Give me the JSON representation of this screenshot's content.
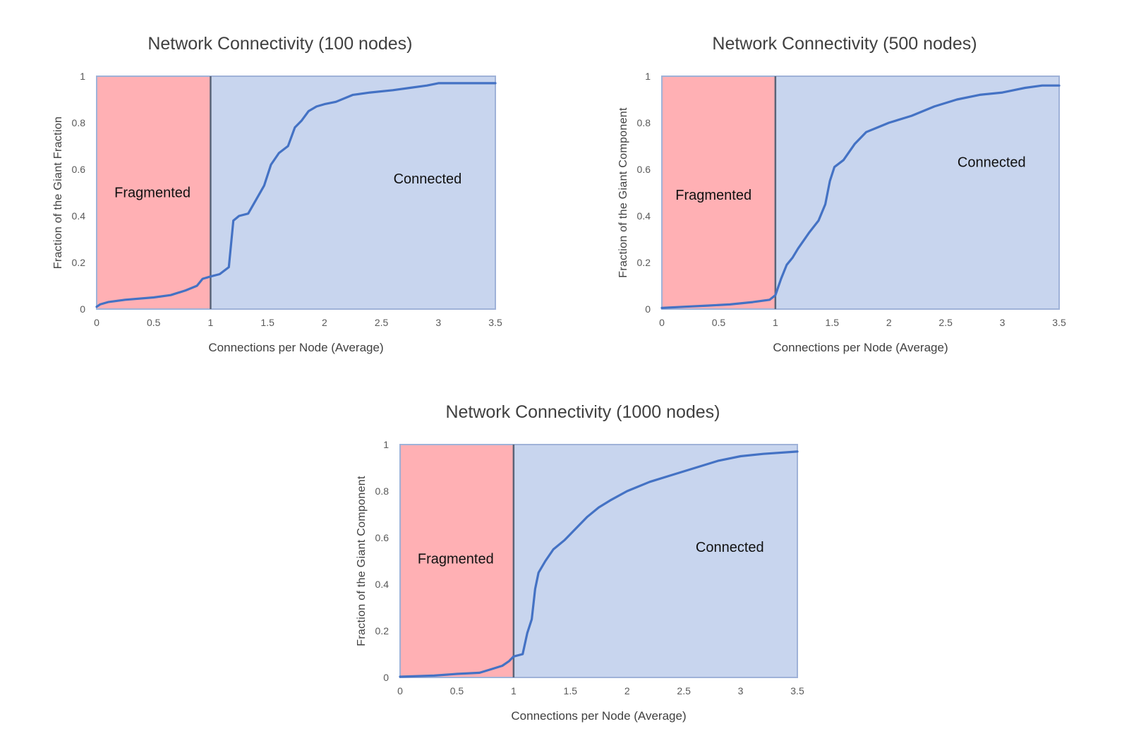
{
  "chart_data": [
    {
      "type": "line",
      "title": "Network Connectivity (100 nodes)",
      "xlabel": "Connections per Node (Average)",
      "ylabel": "Fraction of the Giant Fraction",
      "xlim": [
        0,
        3.5
      ],
      "ylim": [
        0,
        1
      ],
      "xticks": [
        "0",
        "0.5",
        "1",
        "1.5",
        "2",
        "2.5",
        "3",
        "3.5"
      ],
      "yticks": [
        "0",
        "0.2",
        "0.4",
        "0.6",
        "0.8",
        "1"
      ],
      "regions": [
        {
          "label": "Fragmented",
          "x": [
            0,
            1
          ],
          "color": "#ffb0b4"
        },
        {
          "label": "Connected",
          "x": [
            1,
            3.5
          ],
          "color": "#c8d5ee"
        }
      ],
      "series": [
        {
          "color": "#4472c4",
          "x": [
            0,
            0.03,
            0.1,
            0.25,
            0.5,
            0.65,
            0.78,
            0.88,
            0.93,
            1.0,
            1.08,
            1.16,
            1.2,
            1.25,
            1.33,
            1.4,
            1.47,
            1.53,
            1.6,
            1.68,
            1.74,
            1.8,
            1.86,
            1.93,
            2.0,
            2.1,
            2.25,
            2.4,
            2.6,
            2.75,
            2.9,
            3.0,
            3.2,
            3.5
          ],
          "y": [
            0.01,
            0.02,
            0.03,
            0.04,
            0.05,
            0.06,
            0.08,
            0.1,
            0.13,
            0.14,
            0.15,
            0.18,
            0.38,
            0.4,
            0.41,
            0.47,
            0.53,
            0.62,
            0.67,
            0.7,
            0.78,
            0.81,
            0.85,
            0.87,
            0.88,
            0.89,
            0.92,
            0.93,
            0.94,
            0.95,
            0.96,
            0.97,
            0.97,
            0.97
          ]
        }
      ]
    },
    {
      "type": "line",
      "title": "Network Connectivity (500 nodes)",
      "xlabel": "Connections per Node (Average)",
      "ylabel": "Fraction of the Giant Component",
      "xlim": [
        0,
        3.5
      ],
      "ylim": [
        0,
        1
      ],
      "xticks": [
        "0",
        "0.5",
        "1",
        "1.5",
        "2",
        "2.5",
        "3",
        "3.5"
      ],
      "yticks": [
        "0",
        "0.2",
        "0.4",
        "0.6",
        "0.8",
        "1"
      ],
      "regions": [
        {
          "label": "Fragmented",
          "x": [
            0,
            1
          ],
          "color": "#ffb0b4"
        },
        {
          "label": "Connected",
          "x": [
            1,
            3.5
          ],
          "color": "#c8d5ee"
        }
      ],
      "series": [
        {
          "color": "#4472c4",
          "x": [
            0,
            0.2,
            0.4,
            0.6,
            0.8,
            0.95,
            1.0,
            1.05,
            1.1,
            1.15,
            1.2,
            1.3,
            1.38,
            1.44,
            1.48,
            1.52,
            1.6,
            1.7,
            1.8,
            1.9,
            2.0,
            2.2,
            2.4,
            2.6,
            2.8,
            3.0,
            3.2,
            3.35,
            3.5
          ],
          "y": [
            0.005,
            0.01,
            0.015,
            0.02,
            0.03,
            0.04,
            0.06,
            0.13,
            0.19,
            0.22,
            0.26,
            0.33,
            0.38,
            0.45,
            0.55,
            0.61,
            0.64,
            0.71,
            0.76,
            0.78,
            0.8,
            0.83,
            0.87,
            0.9,
            0.92,
            0.93,
            0.95,
            0.96,
            0.96
          ]
        }
      ]
    },
    {
      "type": "line",
      "title": "Network Connectivity (1000 nodes)",
      "xlabel": "Connections per Node (Average)",
      "ylabel": "Fraction of the Giant Component",
      "xlim": [
        0,
        3.5
      ],
      "ylim": [
        0,
        1
      ],
      "xticks": [
        "0",
        "0.5",
        "1",
        "1.5",
        "2",
        "2.5",
        "3",
        "3.5"
      ],
      "yticks": [
        "0",
        "0.2",
        "0.4",
        "0.6",
        "0.8",
        "1"
      ],
      "regions": [
        {
          "label": "Fragmented",
          "x": [
            0,
            1
          ],
          "color": "#ffb0b4"
        },
        {
          "label": "Connected",
          "x": [
            1,
            3.5
          ],
          "color": "#c8d5ee"
        }
      ],
      "series": [
        {
          "color": "#4472c4",
          "x": [
            0,
            0.3,
            0.5,
            0.7,
            0.8,
            0.9,
            0.96,
            1.0,
            1.08,
            1.12,
            1.16,
            1.19,
            1.22,
            1.28,
            1.35,
            1.45,
            1.55,
            1.65,
            1.75,
            1.85,
            2.0,
            2.2,
            2.4,
            2.6,
            2.8,
            3.0,
            3.2,
            3.5
          ],
          "y": [
            0.003,
            0.008,
            0.015,
            0.02,
            0.035,
            0.05,
            0.07,
            0.09,
            0.1,
            0.19,
            0.25,
            0.38,
            0.45,
            0.5,
            0.55,
            0.59,
            0.64,
            0.69,
            0.73,
            0.76,
            0.8,
            0.84,
            0.87,
            0.9,
            0.93,
            0.95,
            0.96,
            0.97
          ]
        }
      ]
    }
  ],
  "colors": {
    "fragmented": "#ffb0b4",
    "connected": "#c8d5ee",
    "line": "#4472c4",
    "divider": "#5a6478",
    "border": "#9fb2d8"
  }
}
